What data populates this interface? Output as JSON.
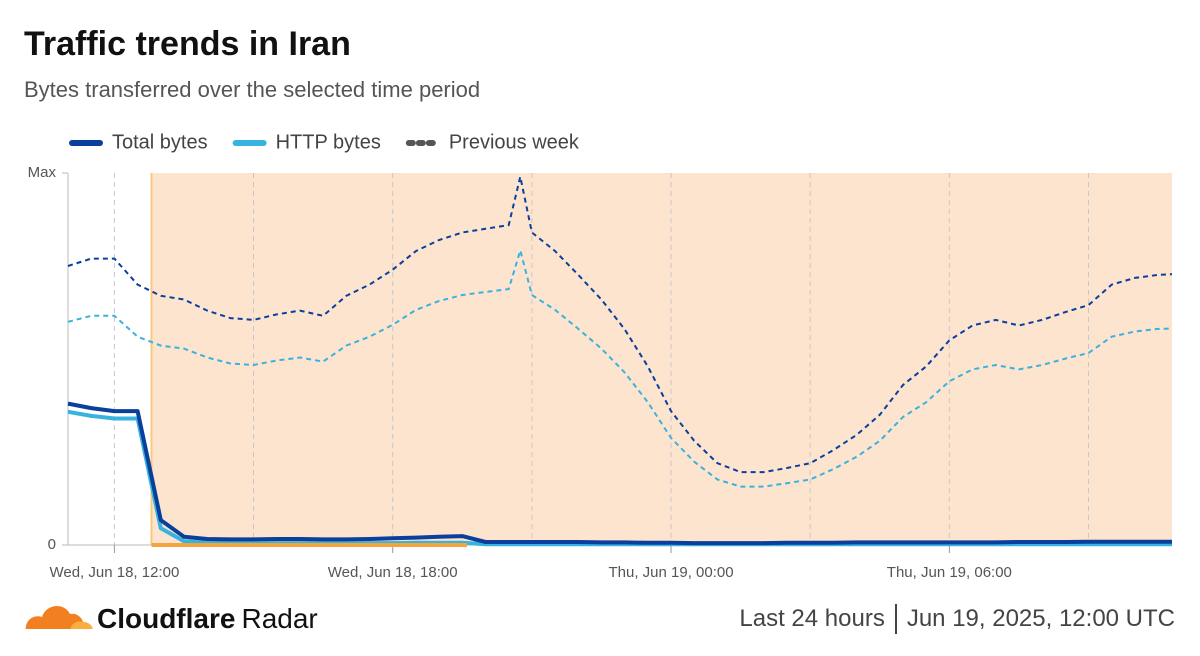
{
  "chart_data": {
    "type": "line",
    "title": "Traffic trends in Iran",
    "subtitle": "Bytes transferred over the selected time period",
    "x": [
      11,
      11.5,
      12,
      12.5,
      13,
      13.5,
      14,
      14.5,
      15,
      15.5,
      16,
      16.5,
      17,
      17.5,
      18,
      18.5,
      19,
      19.5,
      20,
      20.5,
      20.75,
      21,
      21.5,
      22,
      22.5,
      23,
      23.5,
      24,
      24.5,
      25,
      25.5,
      26,
      26.5,
      27,
      27.5,
      28,
      28.5,
      29,
      29.5,
      30,
      30.5,
      31,
      31.5,
      32,
      32.5,
      33,
      33.5,
      34,
      34.5,
      34.8
    ],
    "series": [
      {
        "name": "Total bytes",
        "color": "#0a3f9c",
        "values": [
          38,
          36.8,
          36,
          36,
          6.7,
          2.2,
          1.6,
          1.5,
          1.5,
          1.6,
          1.6,
          1.5,
          1.5,
          1.6,
          1.8,
          2,
          2.2,
          2.4,
          0.8,
          0.8,
          0.8,
          0.8,
          0.8,
          0.8,
          0.7,
          0.7,
          0.6,
          0.6,
          0.5,
          0.5,
          0.5,
          0.5,
          0.6,
          0.6,
          0.6,
          0.7,
          0.7,
          0.7,
          0.7,
          0.7,
          0.7,
          0.7,
          0.8,
          0.8,
          0.8,
          0.9,
          0.9,
          0.9,
          0.9,
          0.9
        ],
        "previous_week": [
          75,
          77,
          77,
          70,
          67,
          66,
          63,
          61,
          60.5,
          62,
          63,
          61.6,
          67,
          70,
          74,
          79,
          82,
          84,
          85,
          86,
          99,
          84,
          79,
          72.6,
          66,
          58,
          48,
          36,
          28,
          22,
          19.6,
          19.6,
          20.7,
          22,
          25.5,
          29.6,
          35,
          43,
          48,
          55,
          59,
          60.5,
          59,
          60.5,
          62.6,
          64.5,
          70,
          71.8,
          72.6,
          72.8
        ]
      },
      {
        "name": "HTTP bytes",
        "color": "#38b2de",
        "values": [
          35.8,
          34.7,
          34,
          34,
          4.5,
          1,
          0.6,
          0.5,
          0.5,
          0.5,
          0.5,
          0.5,
          0.5,
          0.5,
          0.5,
          0.6,
          0.6,
          0.6,
          0.2,
          0.2,
          0.2,
          0.2,
          0.2,
          0.2,
          0.2,
          0.2,
          0.2,
          0.2,
          0.2,
          0.2,
          0.2,
          0.2,
          0.2,
          0.2,
          0.2,
          0.2,
          0.2,
          0.2,
          0.2,
          0.2,
          0.2,
          0.2,
          0.2,
          0.2,
          0.2,
          0.2,
          0.2,
          0.2,
          0.2,
          0.2
        ],
        "previous_week": [
          60,
          61.6,
          61.6,
          56,
          53.6,
          52.8,
          50.4,
          48.8,
          48.4,
          49.6,
          50.4,
          49.3,
          53.6,
          56,
          59.2,
          63.2,
          65.6,
          67.2,
          68,
          68.8,
          79.2,
          67.2,
          63.2,
          58.1,
          52.8,
          46.4,
          38.4,
          28.8,
          22.4,
          17.6,
          15.7,
          15.7,
          16.6,
          17.6,
          20.4,
          23.7,
          28,
          34.4,
          38.4,
          44,
          47.2,
          48.4,
          47.2,
          48.4,
          50.1,
          51.6,
          56,
          57.4,
          58.1,
          58.2
        ]
      }
    ],
    "comparison": {
      "name": "Previous week",
      "legend_color": "#555555"
    },
    "xlim": [
      11,
      34.8
    ],
    "xticks": [
      {
        "value": 12,
        "label": "Wed, Jun 18, 12:00"
      },
      {
        "value": 18,
        "label": "Wed, Jun 18, 18:00"
      },
      {
        "value": 24,
        "label": "Thu, Jun 19, 00:00"
      },
      {
        "value": 30,
        "label": "Thu, Jun 19, 06:00"
      }
    ],
    "xgrid": [
      12,
      15,
      18,
      21,
      24,
      27,
      30,
      33
    ],
    "ylim": [
      0,
      100
    ],
    "yticks": [
      0,
      {
        "value": 100,
        "label": "Max"
      }
    ],
    "shaded": {
      "from": 12.8,
      "to": 34.8,
      "color": "#fde4cf",
      "edge": "#f9c77e"
    },
    "baseline_bar": {
      "from": 12.8,
      "to": 19.6,
      "color": "#f6a33d"
    }
  },
  "footer": {
    "brand": "Cloudflare",
    "product": "Radar",
    "period": "Last 24 hours",
    "date": "Jun 19, 2025, 12:00 UTC"
  }
}
